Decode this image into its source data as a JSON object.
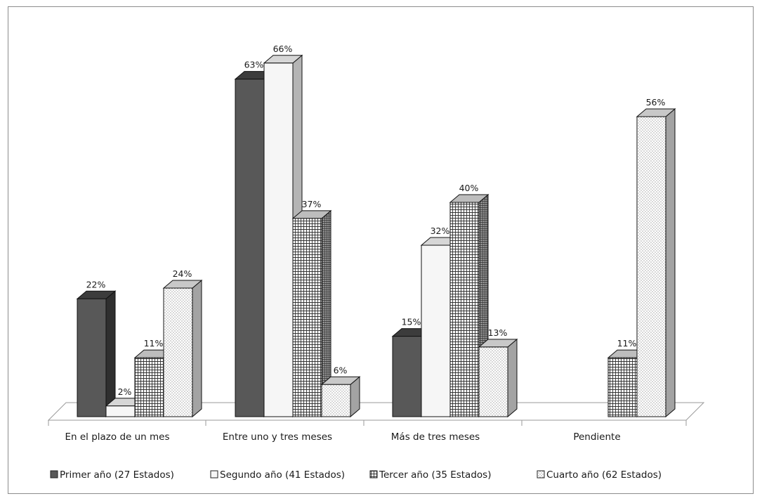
{
  "chart_data": {
    "type": "bar",
    "categories": [
      "En el plazo de un mes",
      "Entre uno y tres meses",
      "Más de tres meses",
      "Pendiente"
    ],
    "series": [
      {
        "name": "Primer año (27 Estados)",
        "values": [
          22,
          63,
          15,
          null
        ],
        "labels": [
          "22%",
          "63%",
          "15%",
          ""
        ],
        "style": "dark",
        "color": "#5a5a5a"
      },
      {
        "name": "Segundo año (41 Estados)",
        "values": [
          2,
          66,
          32,
          null
        ],
        "labels": [
          "2%",
          "66%",
          "32%",
          ""
        ],
        "style": "light",
        "color": "#f4f4f4"
      },
      {
        "name": "Tercer año (35 Estados)",
        "values": [
          11,
          37,
          40,
          11
        ],
        "labels": [
          "11%",
          "37%",
          "40%",
          "11%"
        ],
        "style": "grid",
        "color": "#ffffff"
      },
      {
        "name": "Cuarto año (62 Estados)",
        "values": [
          24,
          6,
          13,
          56
        ],
        "labels": [
          "24%",
          "6%",
          "13%",
          "56%"
        ],
        "style": "dots",
        "color": "#ffffff"
      }
    ],
    "ylim": [
      0,
      70
    ],
    "grid": false,
    "legend_position": "bottom",
    "three_d": true
  }
}
